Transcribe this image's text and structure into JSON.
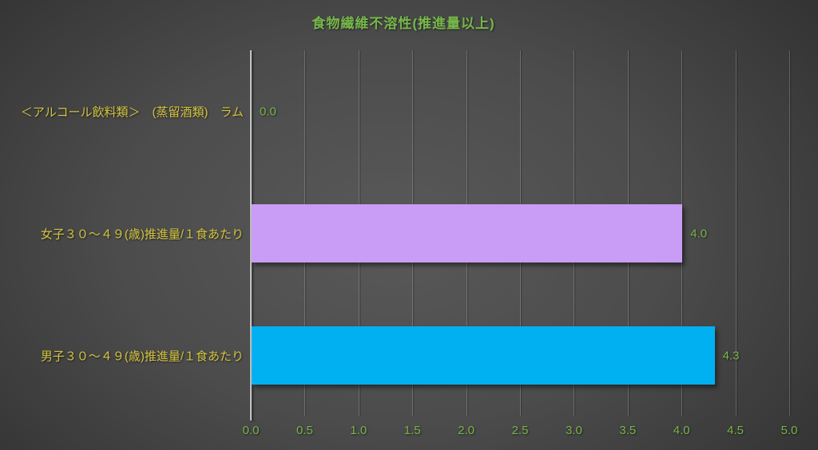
{
  "chart_data": {
    "type": "bar",
    "orientation": "horizontal",
    "title": "食物繊維不溶性(推進量以上)",
    "categories": [
      "＜アルコール飲料類＞　(蒸留酒類)　ラム",
      "女子３０～４９(歳)推進量/１食あたり",
      "男子３０～４９(歳)推進量/１食あたり"
    ],
    "values": [
      0.0,
      4.0,
      4.3
    ],
    "value_labels": [
      "0.0",
      "4.0",
      "4.3"
    ],
    "bar_colors": [
      "none",
      "#c99cf6",
      "#00b0f0"
    ],
    "x_ticks": [
      "0.0",
      "0.5",
      "1.0",
      "1.5",
      "2.0",
      "2.5",
      "3.0",
      "3.5",
      "4.0",
      "4.5",
      "5.0"
    ],
    "xlim": [
      0,
      5
    ],
    "xlabel": "",
    "ylabel": "",
    "grid": true,
    "legend": false
  },
  "colors": {
    "title_text": "#77b84b",
    "category_text": "#d3c43e",
    "tick_text": "#76b548",
    "value_text": "#76b548",
    "bar_female": "#c99cf6",
    "bar_male": "#00b0f0",
    "gridline": "rgba(215,215,215,0.26)",
    "axis_line": "#c4c4c4"
  }
}
